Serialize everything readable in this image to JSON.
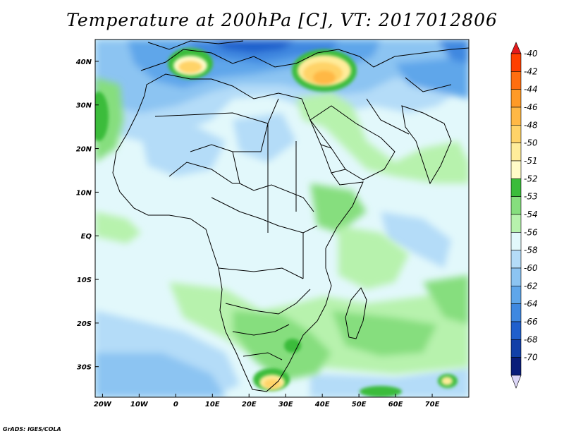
{
  "title": "Temperature at 200hPa [C], VT: 2017012806",
  "credit": "GrADS: IGES/COLA",
  "map": {
    "lon_range": [
      -22,
      80
    ],
    "lat_range": [
      -37,
      45
    ],
    "lon_ticks": [
      {
        "value": -20,
        "label": "20W"
      },
      {
        "value": -10,
        "label": "10W"
      },
      {
        "value": 0,
        "label": "0"
      },
      {
        "value": 10,
        "label": "10E"
      },
      {
        "value": 20,
        "label": "20E"
      },
      {
        "value": 30,
        "label": "30E"
      },
      {
        "value": 40,
        "label": "40E"
      },
      {
        "value": 50,
        "label": "50E"
      },
      {
        "value": 60,
        "label": "60E"
      },
      {
        "value": 70,
        "label": "70E"
      }
    ],
    "lat_ticks": [
      {
        "value": 40,
        "label": "40N"
      },
      {
        "value": 30,
        "label": "30N"
      },
      {
        "value": 20,
        "label": "20N"
      },
      {
        "value": 10,
        "label": "10N"
      },
      {
        "value": 0,
        "label": "EQ"
      },
      {
        "value": -10,
        "label": "10S"
      },
      {
        "value": -20,
        "label": "20S"
      },
      {
        "value": -30,
        "label": "30S"
      }
    ]
  },
  "colorbar": {
    "top_arrow_color": "#e41a1c",
    "bottom_arrow_color": "#dcd6f7",
    "levels": [
      {
        "label": "-40",
        "color": "#ff4000"
      },
      {
        "label": "-42",
        "color": "#ff6e10"
      },
      {
        "label": "-44",
        "color": "#ff9a26"
      },
      {
        "label": "-46",
        "color": "#ffb845"
      },
      {
        "label": "-48",
        "color": "#ffd368"
      },
      {
        "label": "-50",
        "color": "#ffec9a"
      },
      {
        "label": "-51",
        "color": "#fffbc8"
      },
      {
        "label": "-52",
        "color": "#3bbc3b"
      },
      {
        "label": "-53",
        "color": "#86de7e"
      },
      {
        "label": "-54",
        "color": "#b7f2ad"
      },
      {
        "label": "-56",
        "color": "#e2f8fb"
      },
      {
        "label": "-58",
        "color": "#b4dcf8"
      },
      {
        "label": "-60",
        "color": "#8cc4f2"
      },
      {
        "label": "-62",
        "color": "#5fa6ea"
      },
      {
        "label": "-64",
        "color": "#3f88e0"
      },
      {
        "label": "-66",
        "color": "#1f5fcc"
      },
      {
        "label": "-68",
        "color": "#1240a8"
      },
      {
        "label": "-70",
        "color": "#0a1d7a"
      }
    ]
  }
}
